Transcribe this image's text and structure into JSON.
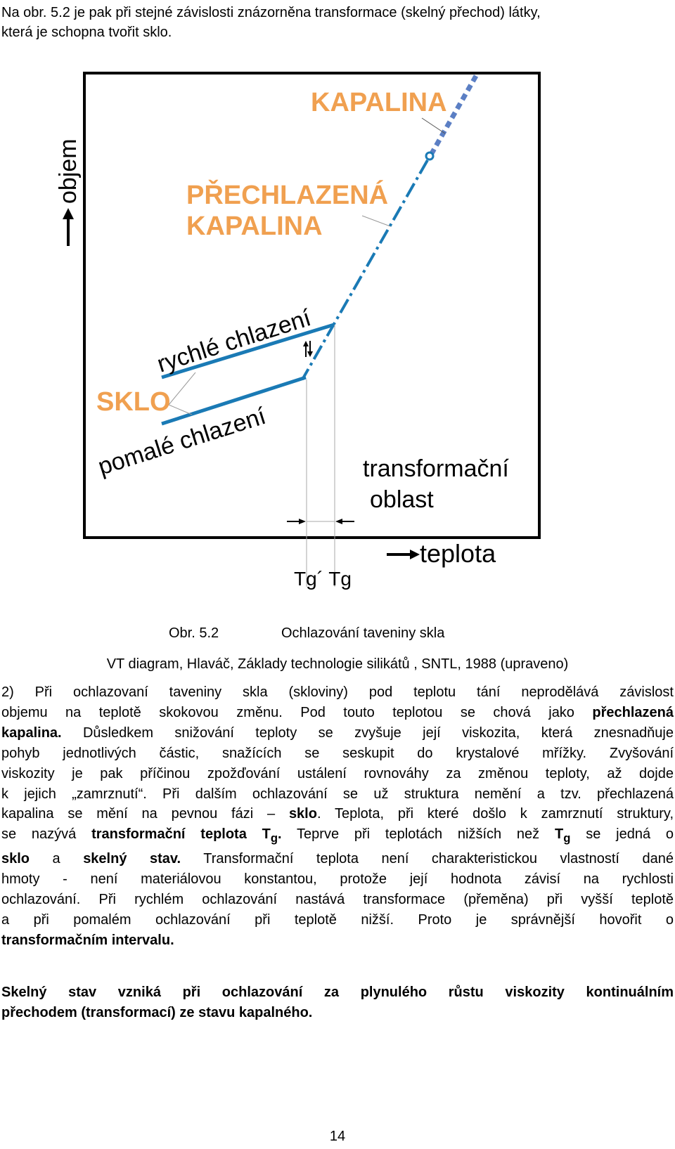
{
  "intro": {
    "line1": "Na obr. 5.2 je pak při stejné závislosti znázorněna transformace (skelný přechod) látky,",
    "line2": "která je schopna tvořit sklo."
  },
  "figure": {
    "y_axis_label": "objem",
    "x_axis_label": "teplota",
    "label_kapalina": "KAPALINA",
    "label_prechlazena_1": "PŘECHLAZENÁ",
    "label_prechlazena_2": "KAPALINA",
    "label_rychle": "rychlé chlazení",
    "label_pomale": "pomalé chlazení",
    "label_sklo": "SKLO",
    "label_transformacni_1": "transformační",
    "label_transformacni_2": "oblast",
    "label_tg": "Tg´ Tg",
    "colors": {
      "orange": "#f0a050",
      "blue": "#1a7ab5",
      "blue_dash": "#5b7fc4",
      "frame": "#000000"
    }
  },
  "caption": {
    "number": "Obr. 5.2",
    "title": "Ochlazování taveniny skla",
    "source": "VT diagram, Hlaváč, Základy technologie silikátů , SNTL, 1988 (upraveno)"
  },
  "paragraph": {
    "l1": "2) Při ochlazovaní taveniny skla (skloviny) pod teplotu tání neprodělává závislost",
    "l2a": "objemu na teplotě skokovou změnu. Pod touto teplotou se chová jako ",
    "l2b": "přechlazená",
    "l3a": "kapalina.",
    "l3b": " Důsledkem snižování teploty se zvyšuje její viskozita, která znesnadňuje",
    "l4": "pohyb jednotlivých částic, snažících se seskupit do krystalové mřížky. Zvyšování",
    "l5": "viskozity je pak příčinou zpožďování ustálení rovnováhy za změnou teploty, až dojde",
    "l6": "k jejich „zamrznutí“. Při dalším ochlazování se už struktura nemění a tzv. přechlazená",
    "l7a": "kapalina se mění na pevnou fázi – ",
    "l7b": "sklo",
    "l7c": ". Teplota, při které došlo k zamrznutí struktury,",
    "l8a": "se nazývá ",
    "l8b": "transformační teplota T",
    "l8sub": "g",
    "l8c": ".",
    "l8d": " Teprve při teplotách nižších než ",
    "l8e": "T",
    "l8esub": "g",
    "l8f": " se jedná o",
    "l9a": "sklo",
    "l9b": " a ",
    "l9c": "skelný stav.",
    "l9d": " Transformační teplota není charakteristickou vlastností dané",
    "l10": "hmoty - není materiálovou konstantou, protože její hodnota závisí na rychlosti",
    "l11": "ochlazování. Při rychlém ochlazování nastává transformace (přeměna) při vyšší teplotě",
    "l12": "a při pomalém ochlazování při teplotě nižší. Proto je správnější hovořit o",
    "l13": "transformačním intervalu."
  },
  "summary": {
    "line1": "Skelný stav vzniká při ochlazování za plynulého růstu viskozity kontinuálním",
    "line2": "přechodem (transformací) ze stavu kapalného."
  },
  "page_number": "14"
}
